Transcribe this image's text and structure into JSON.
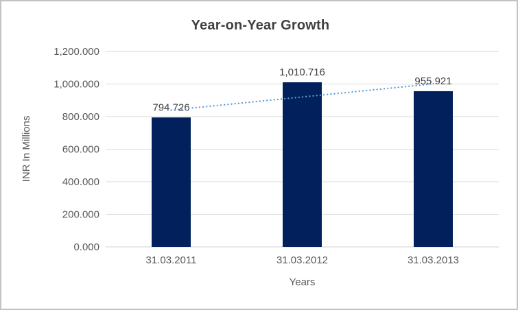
{
  "chart_data": {
    "type": "bar",
    "title": "Year-on-Year Growth",
    "xlabel": "Years",
    "ylabel": "INR In Millions",
    "categories": [
      "31.03.2011",
      "31.03.2012",
      "31.03.2013"
    ],
    "values": [
      794.726,
      1010.716,
      955.921
    ],
    "value_labels": [
      "794.726",
      "1,010.716",
      "955.921"
    ],
    "y_ticks": [
      {
        "value": 0,
        "label": "0.000"
      },
      {
        "value": 200,
        "label": "200.000"
      },
      {
        "value": 400,
        "label": "400.000"
      },
      {
        "value": 600,
        "label": "600.000"
      },
      {
        "value": 800,
        "label": "800.000"
      },
      {
        "value": 1000,
        "label": "1,000.000"
      },
      {
        "value": 1200,
        "label": "1,200.000"
      }
    ],
    "ylim": [
      0,
      1200
    ],
    "grid": true,
    "legend": "none",
    "trendline": {
      "type": "linear",
      "style": "dotted"
    },
    "colors": {
      "bar": "#02215c",
      "trendline": "#5b9bd5",
      "gridline": "#d9d9d9",
      "axis_line": "#d9d9d9",
      "title": "#404040",
      "tick_label": "#595959",
      "data_label": "#404040",
      "frame_border": "#c3c3c3",
      "background": "#ffffff"
    }
  }
}
